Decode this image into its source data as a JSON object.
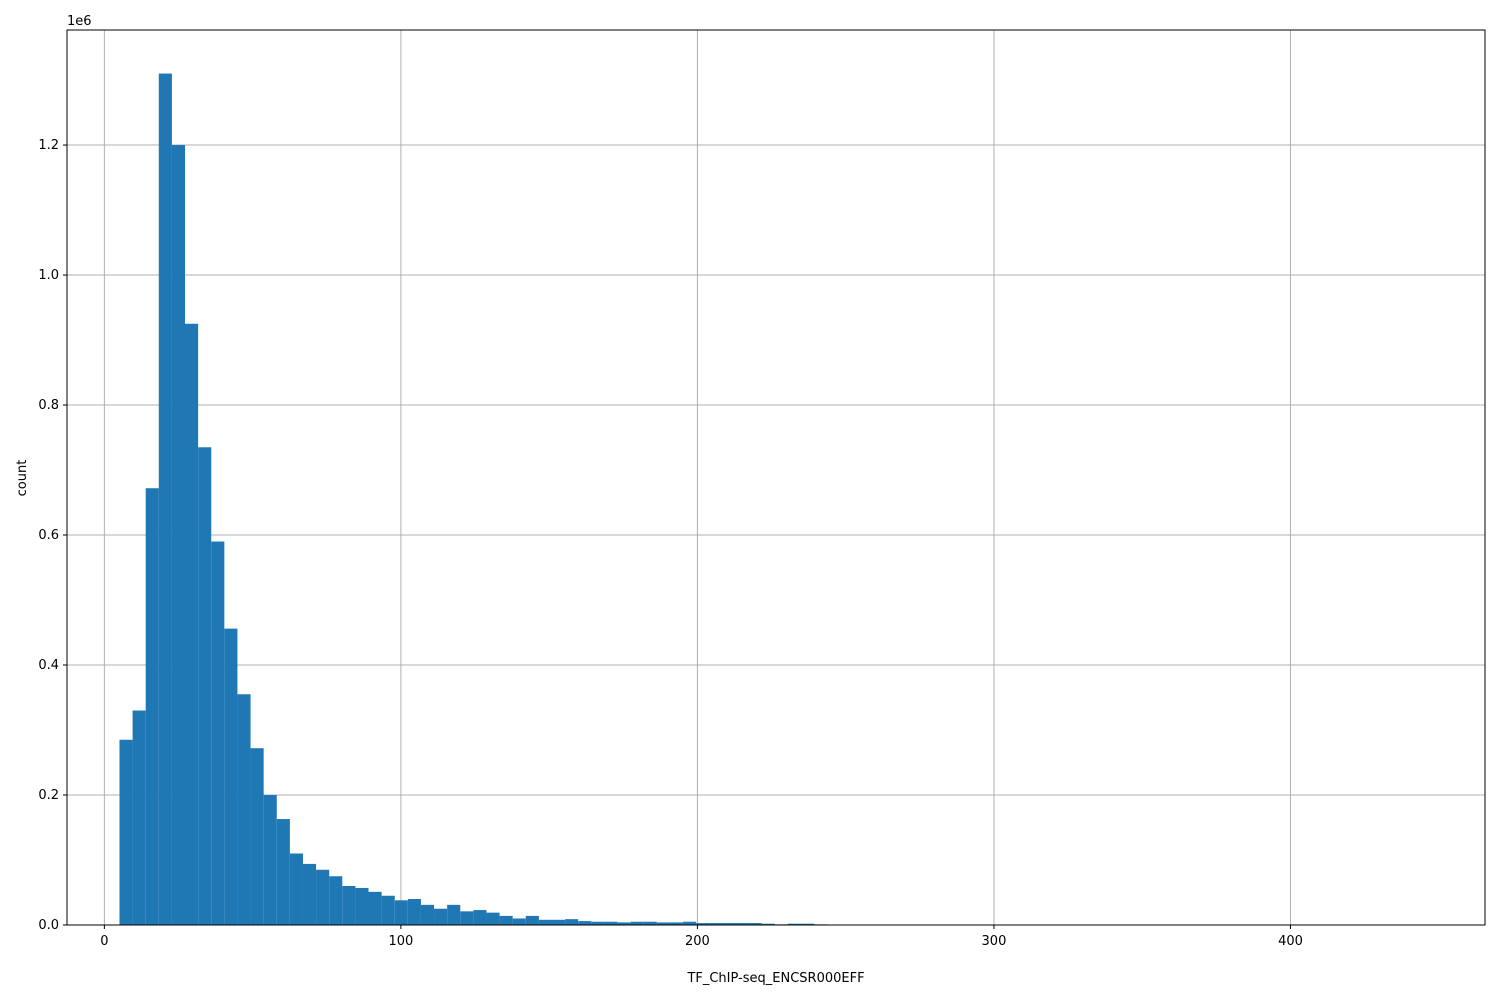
{
  "chart_data": {
    "type": "bar",
    "title": "",
    "xlabel": "TF_ChIP-seq_ENCSR000EFF",
    "ylabel": "count",
    "y_offset_label": "1e6",
    "xlim": [
      -12.6,
      465.6
    ],
    "ylim": [
      0,
      1377000
    ],
    "grid": true,
    "color": "#1f77b4",
    "bin_start": 5.1,
    "bin_width": 4.42,
    "x_ticks": [
      0,
      100,
      200,
      300,
      400
    ],
    "x_tick_labels": [
      "0",
      "100",
      "200",
      "300",
      "400"
    ],
    "y_ticks": [
      0,
      200000,
      400000,
      600000,
      800000,
      1000000,
      1200000
    ],
    "y_tick_labels": [
      "0.0",
      "0.2",
      "0.4",
      "0.6",
      "0.8",
      "1.0",
      "1.2"
    ],
    "values": [
      285000,
      330000,
      672000,
      1310000,
      1200000,
      925000,
      735000,
      590000,
      456000,
      355000,
      272000,
      200000,
      163000,
      110000,
      94000,
      85000,
      75000,
      60000,
      57000,
      51000,
      45000,
      38000,
      40000,
      31000,
      25000,
      31000,
      21000,
      23000,
      19000,
      14000,
      10000,
      14000,
      8000,
      8000,
      9000,
      6000,
      5000,
      5000,
      4000,
      5000,
      5000,
      4000,
      4000,
      5000,
      3000,
      3000,
      3000,
      3000,
      3000,
      2000,
      1000,
      2000,
      2000,
      1000,
      0,
      0,
      0,
      0,
      0,
      0,
      0,
      0,
      0,
      0,
      0,
      0,
      0,
      0,
      0,
      0,
      0,
      0,
      0,
      0,
      0,
      0,
      0,
      0,
      0,
      0,
      0,
      0,
      0,
      0,
      0,
      0,
      0,
      0,
      0,
      0,
      0,
      0,
      0,
      0,
      0,
      0,
      0,
      0,
      0,
      0
    ]
  }
}
